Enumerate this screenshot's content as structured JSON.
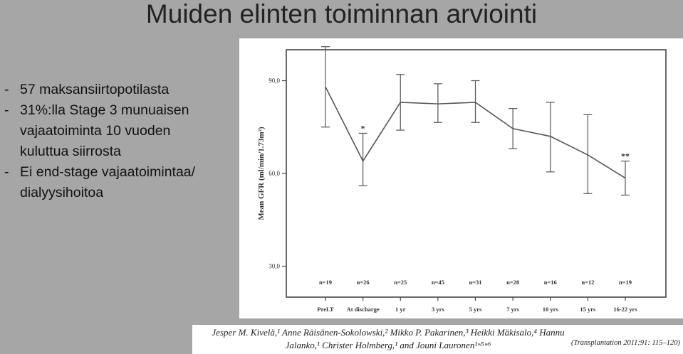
{
  "slide": {
    "title": "Muiden elinten toiminnan arviointi",
    "bullets": [
      {
        "dash": "-",
        "lines": [
          "57 maksansiirtopotilasta"
        ]
      },
      {
        "dash": "-",
        "lines": [
          "31%:lla Stage 3 munuaisen",
          "vajaatoiminta 10 vuoden",
          "kuluttua siirrosta"
        ]
      },
      {
        "dash": "-",
        "lines": [
          "Ei end-stage vajaatoimintaa/",
          "dialyysihoitoa"
        ]
      }
    ]
  },
  "citation": {
    "authors": "Jesper M. Kivelä,¹ Anne Räisänen-Sokolowski,² Mikko P. Pakarinen,³ Heikki Mäkisalo,⁴ Hannu Jalanko,¹ Christer Holmberg,¹ and Jouni Lauronen¹ʷ⁵ʷ⁶",
    "journal": "(Transplantation 2011;91: 115–120)"
  },
  "chart_data": {
    "type": "line",
    "title": "",
    "xlabel": "",
    "ylabel": "Mean GFR (ml/min/1.73m²)",
    "ylim": [
      20,
      100
    ],
    "yticks": [
      30.0,
      60.0,
      90.0
    ],
    "ytick_labels": [
      "30,0",
      "60,0",
      "90,0"
    ],
    "grid": false,
    "categories": [
      "PreLT",
      "At discharge",
      "1 yr",
      "3 yrs",
      "5 yrs",
      "7 yrs",
      "10 yrs",
      "15 yrs",
      "16-22 yrs"
    ],
    "series": [
      {
        "values": [
          88,
          64,
          83,
          82.5,
          83,
          74.5,
          72,
          66,
          58.5
        ],
        "error_upper": [
          101,
          73,
          92,
          89,
          90,
          81,
          83,
          79,
          64
        ],
        "error_lower": [
          75,
          56,
          74,
          76.5,
          76.5,
          68,
          60.5,
          53.5,
          53
        ]
      }
    ],
    "n_labels": [
      "n=19",
      "n=26",
      "n=25",
      "n=45",
      "n=31",
      "n=28",
      "n=16",
      "n=12",
      "n=19"
    ],
    "annotations": [
      "",
      "*",
      "",
      "",
      "",
      "",
      "",
      "",
      "**"
    ]
  }
}
